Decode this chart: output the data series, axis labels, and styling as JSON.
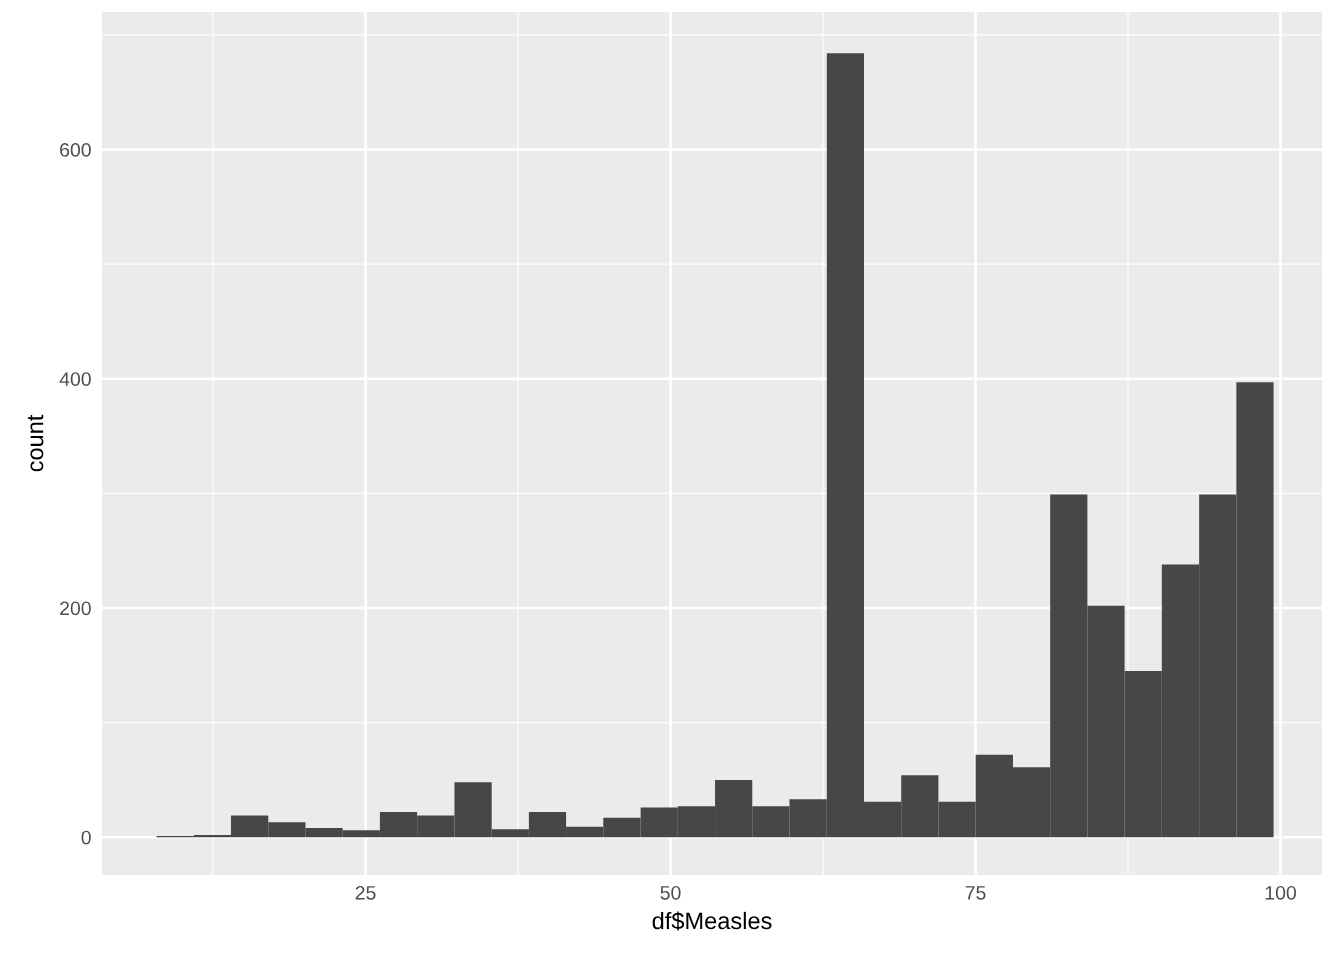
{
  "chart_data": {
    "type": "histogram",
    "xlabel": "df$Measles",
    "ylabel": "count",
    "color": "#474747",
    "bins": [
      7.87,
      10.92,
      13.97,
      17.03,
      20.08,
      23.13,
      26.18,
      29.23,
      32.29,
      35.34,
      38.39,
      41.44,
      44.49,
      47.55,
      50.6,
      53.65,
      56.7,
      59.75,
      62.81,
      65.86,
      68.91,
      71.96,
      75.01,
      78.07,
      81.12,
      84.17,
      87.22,
      90.27,
      93.33,
      96.38,
      99.43
    ],
    "values": [
      1,
      2,
      19,
      13,
      8,
      6,
      22,
      19,
      48,
      7,
      22,
      9,
      17,
      26,
      27,
      50,
      27,
      33,
      684,
      31,
      54,
      31,
      72,
      61,
      299,
      202,
      145,
      238,
      299,
      397
    ],
    "xlim": [
      3.4,
      103.4
    ],
    "ylim": [
      -33,
      720
    ],
    "xticks": [
      25,
      50,
      75,
      100
    ],
    "yticks": [
      0,
      200,
      400,
      600
    ],
    "grid": true
  }
}
